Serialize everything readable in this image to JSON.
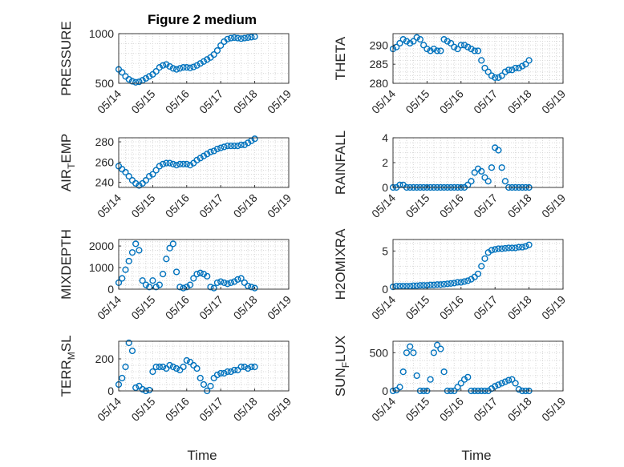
{
  "figure_title": "Figure 2 medium",
  "x_axis": {
    "label": "Time",
    "tick_labels": [
      "05/14",
      "05/15",
      "05/16",
      "05/17",
      "05/18",
      "05/19"
    ],
    "range": [
      14,
      19
    ]
  },
  "style": {
    "marker_color": "#0072bd",
    "axis_color": "#262626",
    "grid_color": "#d9d9d9"
  },
  "chart_data": [
    {
      "type": "scatter",
      "ylabel": "PRESSURE",
      "ylabel_sub": "",
      "ylabel_rest": "",
      "ylim": [
        500,
        1000
      ],
      "yticks": [
        500,
        1000
      ],
      "grid": true,
      "x": [
        14.0,
        14.1,
        14.2,
        14.3,
        14.4,
        14.5,
        14.6,
        14.7,
        14.8,
        14.9,
        15.0,
        15.1,
        15.2,
        15.3,
        15.4,
        15.5,
        15.6,
        15.7,
        15.8,
        15.9,
        16.0,
        16.1,
        16.2,
        16.3,
        16.4,
        16.5,
        16.6,
        16.7,
        16.8,
        16.9,
        17.0,
        17.1,
        17.2,
        17.3,
        17.4,
        17.5,
        17.6,
        17.7,
        17.8,
        17.9,
        18.0
      ],
      "y": [
        640,
        610,
        570,
        540,
        520,
        510,
        515,
        530,
        550,
        570,
        590,
        620,
        660,
        680,
        690,
        670,
        650,
        640,
        650,
        660,
        660,
        655,
        665,
        680,
        700,
        720,
        740,
        760,
        790,
        830,
        880,
        920,
        945,
        955,
        960,
        955,
        950,
        955,
        960,
        965,
        970
      ]
    },
    {
      "type": "scatter",
      "ylabel": "THETA",
      "ylabel_sub": "",
      "ylabel_rest": "",
      "ylim": [
        280,
        293
      ],
      "yticks": [
        280,
        285,
        290
      ],
      "grid": true,
      "x": [
        14.0,
        14.1,
        14.2,
        14.3,
        14.4,
        14.5,
        14.6,
        14.7,
        14.8,
        14.9,
        15.0,
        15.1,
        15.2,
        15.3,
        15.4,
        15.5,
        15.6,
        15.7,
        15.8,
        15.9,
        16.0,
        16.1,
        16.2,
        16.3,
        16.4,
        16.5,
        16.6,
        16.7,
        16.8,
        16.9,
        17.0,
        17.1,
        17.2,
        17.3,
        17.4,
        17.5,
        17.6,
        17.7,
        17.8,
        17.9,
        18.0
      ],
      "y": [
        289,
        289.5,
        290.5,
        291.5,
        291,
        290.5,
        291,
        292,
        291.5,
        290,
        289,
        288.5,
        289,
        288.5,
        288.5,
        291.5,
        291,
        290.5,
        289.5,
        289,
        290,
        290,
        289.5,
        289,
        288.5,
        288.5,
        286,
        284,
        283,
        282,
        281.5,
        281.5,
        282,
        283,
        283.5,
        283.5,
        284,
        284,
        284.5,
        285,
        286
      ]
    },
    {
      "type": "scatter",
      "ylabel": "AIR",
      "ylabel_sub": "T",
      "ylabel_rest": "EMP",
      "ylim": [
        235,
        284
      ],
      "yticks": [
        240,
        260,
        280
      ],
      "grid": true,
      "x": [
        14.0,
        14.1,
        14.2,
        14.3,
        14.4,
        14.5,
        14.6,
        14.7,
        14.8,
        14.9,
        15.0,
        15.1,
        15.2,
        15.3,
        15.4,
        15.5,
        15.6,
        15.7,
        15.8,
        15.9,
        16.0,
        16.1,
        16.2,
        16.3,
        16.4,
        16.5,
        16.6,
        16.7,
        16.8,
        16.9,
        17.0,
        17.1,
        17.2,
        17.3,
        17.4,
        17.5,
        17.6,
        17.7,
        17.8,
        17.9,
        18.0
      ],
      "y": [
        256,
        253,
        250,
        246,
        242,
        239,
        237,
        239,
        242,
        246,
        248,
        252,
        256,
        258,
        259,
        259,
        258,
        257,
        258,
        258,
        258,
        257,
        259,
        262,
        264,
        266,
        268,
        270,
        271,
        273,
        274,
        275,
        276,
        276,
        276,
        276,
        277,
        277,
        279,
        281,
        283
      ]
    },
    {
      "type": "scatter",
      "ylabel": "RAINFALL",
      "ylabel_sub": "",
      "ylabel_rest": "",
      "ylim": [
        0,
        4
      ],
      "yticks": [
        0,
        2,
        4
      ],
      "grid": true,
      "x": [
        14.0,
        14.1,
        14.2,
        14.3,
        14.4,
        14.5,
        14.6,
        14.7,
        14.8,
        14.9,
        15.0,
        15.1,
        15.2,
        15.3,
        15.4,
        15.5,
        15.6,
        15.7,
        15.8,
        15.9,
        16.0,
        16.1,
        16.2,
        16.3,
        16.4,
        16.5,
        16.6,
        16.7,
        16.8,
        16.9,
        17.0,
        17.1,
        17.2,
        17.3,
        17.4,
        17.5,
        17.6,
        17.7,
        17.8,
        17.9,
        18.0
      ],
      "y": [
        0,
        0,
        0.2,
        0.2,
        0,
        0,
        0,
        0,
        0,
        0,
        0,
        0,
        0,
        0,
        0,
        0,
        0,
        0,
        0,
        0,
        0,
        0,
        0.2,
        0.5,
        1.2,
        1.5,
        1.3,
        0.8,
        0.5,
        1.6,
        3.2,
        3.0,
        1.6,
        0.5,
        0,
        0,
        0,
        0,
        0,
        0,
        0
      ]
    },
    {
      "type": "scatter",
      "ylabel": "MIXDEPTH",
      "ylabel_sub": "",
      "ylabel_rest": "",
      "ylim": [
        0,
        2300
      ],
      "yticks": [
        0,
        1000,
        2000
      ],
      "grid": true,
      "x": [
        14.0,
        14.1,
        14.2,
        14.3,
        14.4,
        14.5,
        14.6,
        14.7,
        14.8,
        14.9,
        15.0,
        15.1,
        15.2,
        15.3,
        15.4,
        15.5,
        15.6,
        15.7,
        15.8,
        15.9,
        16.0,
        16.1,
        16.2,
        16.3,
        16.4,
        16.5,
        16.6,
        16.7,
        16.8,
        16.9,
        17.0,
        17.1,
        17.2,
        17.3,
        17.4,
        17.5,
        17.6,
        17.7,
        17.8,
        17.9,
        18.0
      ],
      "y": [
        300,
        500,
        900,
        1300,
        1700,
        2100,
        1800,
        400,
        200,
        100,
        400,
        100,
        200,
        700,
        1400,
        1900,
        2100,
        800,
        100,
        50,
        100,
        200,
        500,
        700,
        750,
        700,
        600,
        100,
        50,
        300,
        350,
        300,
        250,
        300,
        350,
        450,
        500,
        300,
        150,
        100,
        50
      ]
    },
    {
      "type": "scatter",
      "ylabel": "H2OMIXRA",
      "ylabel_sub": "",
      "ylabel_rest": "",
      "ylim": [
        0,
        6.5
      ],
      "yticks": [
        0,
        5
      ],
      "grid": true,
      "x": [
        14.0,
        14.1,
        14.2,
        14.3,
        14.4,
        14.5,
        14.6,
        14.7,
        14.8,
        14.9,
        15.0,
        15.1,
        15.2,
        15.3,
        15.4,
        15.5,
        15.6,
        15.7,
        15.8,
        15.9,
        16.0,
        16.1,
        16.2,
        16.3,
        16.4,
        16.5,
        16.6,
        16.7,
        16.8,
        16.9,
        17.0,
        17.1,
        17.2,
        17.3,
        17.4,
        17.5,
        17.6,
        17.7,
        17.8,
        17.9,
        18.0
      ],
      "y": [
        0.3,
        0.4,
        0.4,
        0.4,
        0.4,
        0.4,
        0.45,
        0.45,
        0.5,
        0.5,
        0.5,
        0.55,
        0.55,
        0.6,
        0.6,
        0.65,
        0.7,
        0.75,
        0.8,
        0.9,
        0.9,
        1.0,
        1.1,
        1.3,
        1.6,
        2.0,
        3.0,
        4.0,
        4.8,
        5.1,
        5.2,
        5.3,
        5.3,
        5.35,
        5.4,
        5.4,
        5.4,
        5.5,
        5.5,
        5.6,
        5.8
      ]
    },
    {
      "type": "scatter",
      "ylabel": "TERR",
      "ylabel_sub": "M",
      "ylabel_rest": "SL",
      "ylim": [
        0,
        310
      ],
      "yticks": [
        0,
        200
      ],
      "grid": true,
      "x": [
        14.0,
        14.1,
        14.2,
        14.3,
        14.4,
        14.5,
        14.6,
        14.7,
        14.8,
        14.9,
        15.0,
        15.1,
        15.2,
        15.3,
        15.4,
        15.5,
        15.6,
        15.7,
        15.8,
        15.9,
        16.0,
        16.1,
        16.2,
        16.3,
        16.4,
        16.5,
        16.6,
        16.7,
        16.8,
        16.9,
        17.0,
        17.1,
        17.2,
        17.3,
        17.4,
        17.5,
        17.6,
        17.7,
        17.8,
        17.9,
        18.0
      ],
      "y": [
        40,
        80,
        150,
        300,
        250,
        20,
        30,
        10,
        0,
        5,
        120,
        150,
        150,
        150,
        140,
        160,
        150,
        140,
        130,
        150,
        190,
        180,
        160,
        140,
        80,
        40,
        0,
        30,
        80,
        100,
        110,
        110,
        120,
        120,
        130,
        130,
        150,
        150,
        140,
        150,
        150
      ]
    },
    {
      "type": "scatter",
      "ylabel": "SUN",
      "ylabel_sub": "F",
      "ylabel_rest": "LUX",
      "ylim": [
        0,
        650
      ],
      "yticks": [
        0,
        500
      ],
      "grid": true,
      "x": [
        14.0,
        14.1,
        14.2,
        14.3,
        14.4,
        14.5,
        14.6,
        14.7,
        14.8,
        14.9,
        15.0,
        15.1,
        15.2,
        15.3,
        15.4,
        15.5,
        15.6,
        15.7,
        15.8,
        15.9,
        16.0,
        16.1,
        16.2,
        16.3,
        16.4,
        16.5,
        16.6,
        16.7,
        16.8,
        16.9,
        17.0,
        17.1,
        17.2,
        17.3,
        17.4,
        17.5,
        17.6,
        17.7,
        17.8,
        17.9,
        18.0
      ],
      "y": [
        0,
        10,
        50,
        250,
        500,
        580,
        500,
        200,
        0,
        0,
        0,
        150,
        500,
        600,
        550,
        250,
        0,
        0,
        0,
        50,
        100,
        150,
        180,
        0,
        0,
        0,
        0,
        0,
        0,
        30,
        60,
        80,
        100,
        120,
        140,
        150,
        100,
        20,
        0,
        0,
        0
      ]
    }
  ]
}
